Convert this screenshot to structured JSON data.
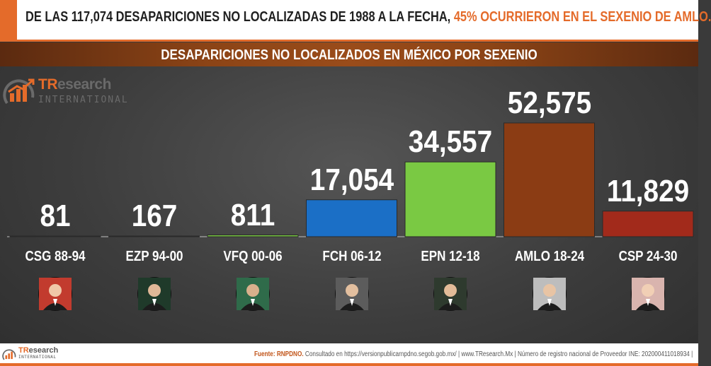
{
  "headline": {
    "text": "DE LAS 117,074 DESAPARICIONES NO LOCALIZADAS DE 1988 A LA FECHA,",
    "accent": "45% OCURRIERON EN EL SEXENIO DE AMLO."
  },
  "brand": {
    "tr": "TR",
    "name": "esearch",
    "sub": "INTERNATIONAL",
    "accent_color": "#e46b2a"
  },
  "footer": {
    "source_label": "Fuente: RNPDNO.",
    "text": "Consultado en https://versionpublicarnpdno.segob.gob.mx/ | www.TResearch.Mx | Número de registro nacional de Proveedor INE: 202000411018934 |"
  },
  "chart_data": {
    "type": "bar",
    "title": "DESAPARICIONES NO LOCALIZADOS EN MÉXICO POR SEXENIO",
    "categories": [
      "CSG 88-94",
      "EZP 94-00",
      "VFQ 00-06",
      "FCH 06-12",
      "EPN 12-18",
      "AMLO 18-24",
      "CSP 24-30"
    ],
    "values": [
      81,
      167,
      811,
      17054,
      34557,
      52575,
      11829
    ],
    "value_labels": [
      "81",
      "167",
      "811",
      "17,054",
      "34,557",
      "52,575",
      "11,829"
    ],
    "colors": [
      "#8e8e8e",
      "#2e8b57",
      "#7ac943",
      "#1b6fc6",
      "#7ac943",
      "#8b3c14",
      "#a22a1b"
    ],
    "portraits": [
      "portrait-csg",
      "portrait-ezp",
      "portrait-vfq",
      "portrait-fch",
      "portrait-epn",
      "portrait-amlo",
      "portrait-csp"
    ],
    "xlabel": "",
    "ylabel": "",
    "ylim": [
      0,
      54000
    ],
    "grid": false,
    "legend": "none"
  }
}
